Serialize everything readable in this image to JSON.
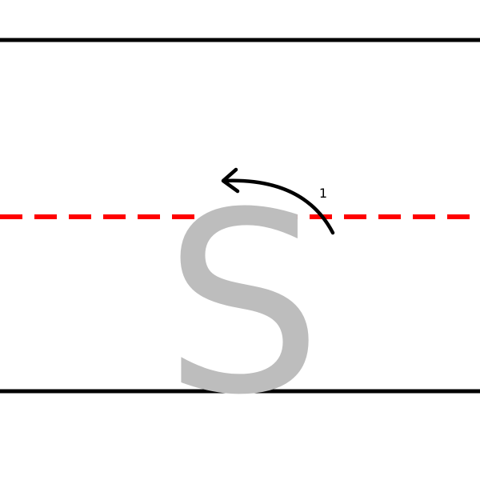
{
  "letter": {
    "char": "S",
    "color": "#bdbdbd"
  },
  "guides": {
    "line_color": "#000000",
    "midline_color": "#ff0000"
  },
  "strokes": [
    {
      "number": "1",
      "color": "#000000",
      "direction": "counterclockwise"
    }
  ],
  "icons": {
    "arrow": "curved-arrow-icon"
  }
}
